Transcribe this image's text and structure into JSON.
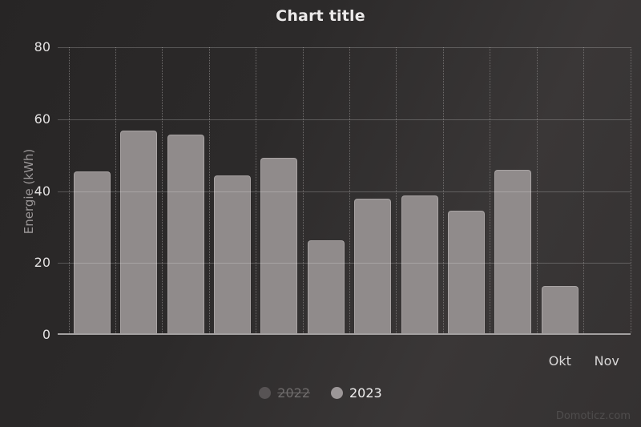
{
  "chart_data": {
    "type": "bar",
    "title": "Chart title",
    "xlabel": "",
    "ylabel": "Energie (kWh)",
    "ylim": [
      0,
      80
    ],
    "yticks": [
      0,
      20,
      40,
      60,
      80
    ],
    "categories": [
      "",
      "",
      "",
      "",
      "",
      "",
      "",
      "",
      "",
      "",
      "Okt",
      "Nov"
    ],
    "series": [
      {
        "name": "2022",
        "visible": false,
        "values": []
      },
      {
        "name": "2023",
        "visible": true,
        "values": [
          45.5,
          56.9,
          55.8,
          44.4,
          49.3,
          26.3,
          37.9,
          38.8,
          34.6,
          46,
          13.6,
          null
        ]
      }
    ],
    "grid": {
      "horizontal": "solid",
      "vertical": "dotted"
    },
    "legend_position": "bottom-center"
  },
  "legend": {
    "items": [
      {
        "label": "2022",
        "marker_color": "#575354",
        "disabled": true
      },
      {
        "label": "2023",
        "marker_color": "#9c9798",
        "disabled": false
      }
    ]
  },
  "watermark": "Domoticz.com",
  "colors": {
    "background_light": "#3a3737",
    "background_dark": "#272525",
    "bar_fill": "#908b8b",
    "bar_border": "#a8a3a3",
    "title_text": "#eceaea",
    "axis_text": "#e3e1e1",
    "axis_title_text": "#9a9697",
    "active_legend_text": "#f1f0f0",
    "disabled_legend_text": "#6f6c6c",
    "watermark_text": "#4f4d4d"
  }
}
